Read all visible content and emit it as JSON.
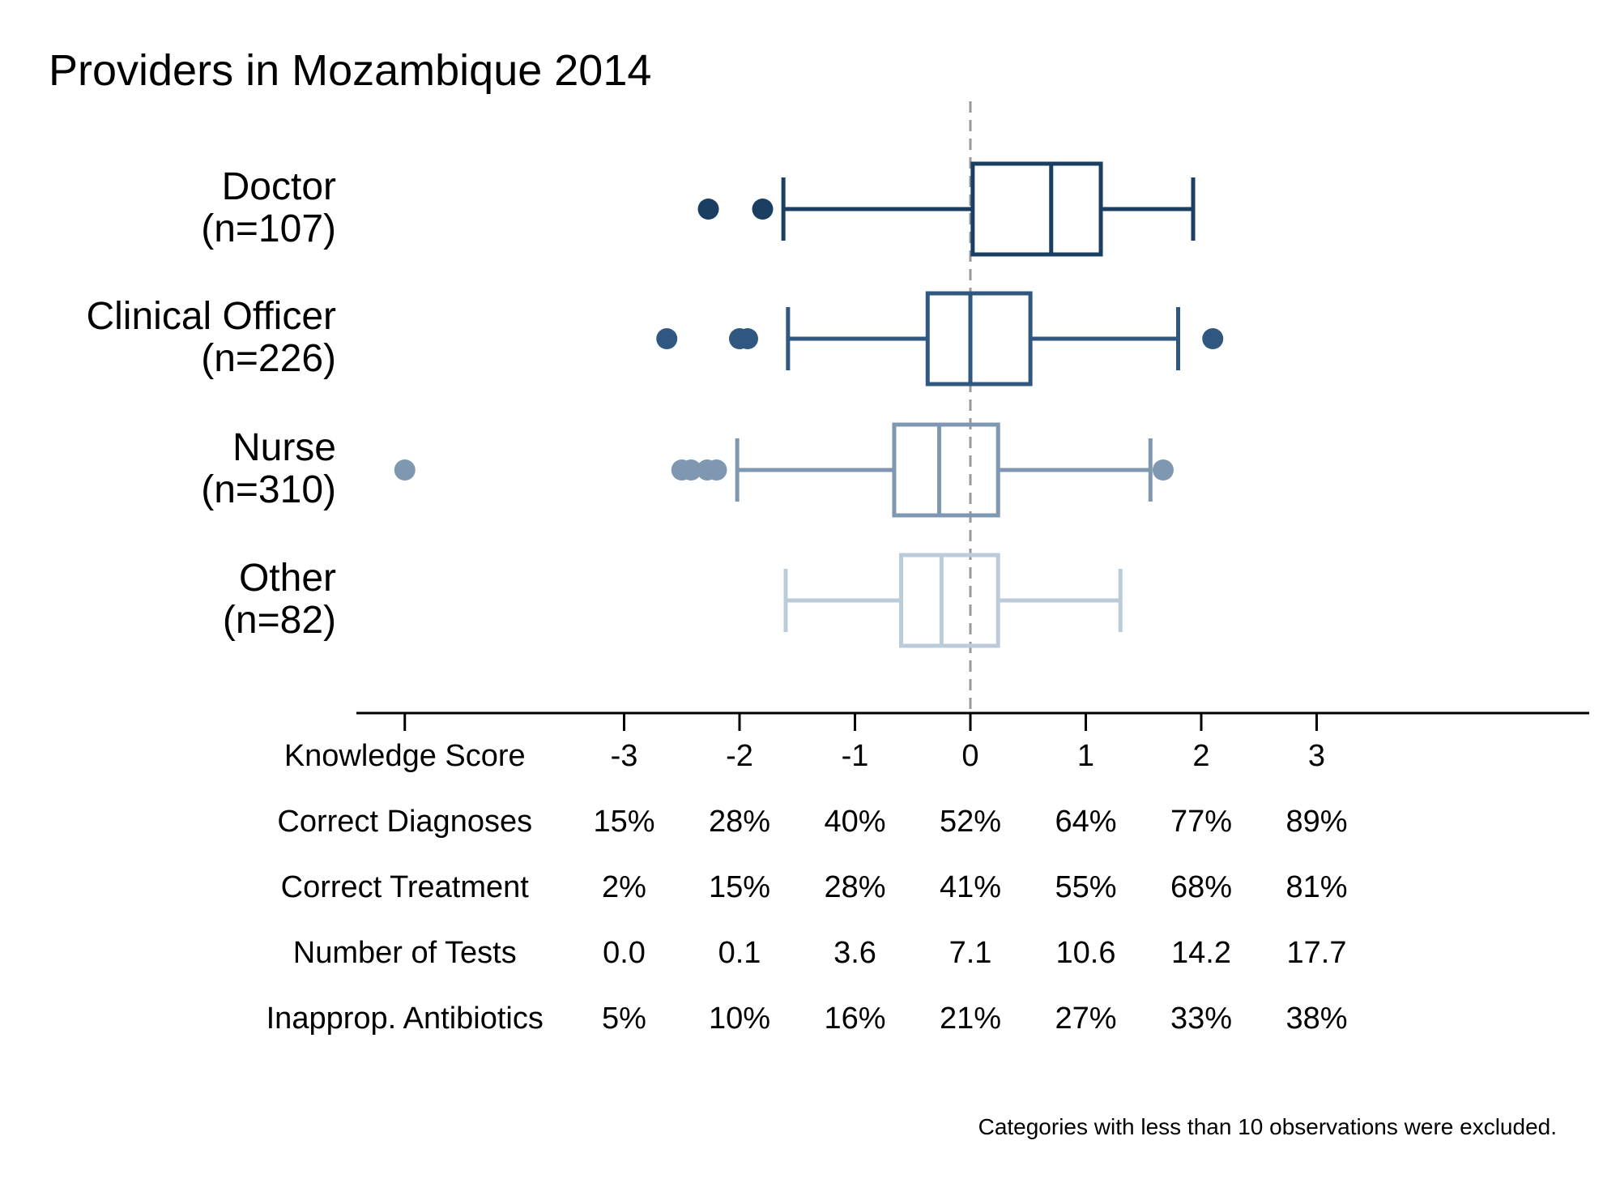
{
  "chart_data": {
    "type": "boxplot",
    "title": "Providers in Mozambique 2014",
    "note": "Categories with less than 10 observations were excluded.",
    "xlim": [
      -3.5,
      5.3
    ],
    "reference_line": 0,
    "colors": [
      "#1b3f63",
      "#2f577f",
      "#7f97b0",
      "#bccbda"
    ],
    "categories": [
      {
        "name": "Doctor",
        "n_label": "(n=107)",
        "q1": 0.02,
        "median": 0.7,
        "q3": 1.13,
        "whisker_low": -1.62,
        "whisker_high": 1.93,
        "outliers": [
          -2.27,
          -1.8
        ]
      },
      {
        "name": "Clinical Officer",
        "n_label": "(n=226)",
        "q1": -0.37,
        "median": 0.0,
        "q3": 0.52,
        "whisker_low": -1.58,
        "whisker_high": 1.8,
        "outliers": [
          -2.63,
          -2.0,
          -1.93,
          2.1
        ]
      },
      {
        "name": "Nurse",
        "n_label": "(n=310)",
        "q1": -0.66,
        "median": -0.27,
        "q3": 0.24,
        "whisker_low": -2.02,
        "whisker_high": 1.56,
        "outliers": [
          -4.9,
          -2.5,
          -2.42,
          -2.28,
          -2.2,
          1.67
        ]
      },
      {
        "name": "Other",
        "n_label": "(n=82)",
        "q1": -0.6,
        "median": -0.25,
        "q3": 0.24,
        "whisker_low": -1.6,
        "whisker_high": 1.3,
        "outliers": []
      }
    ],
    "table": {
      "ticks": [
        -3,
        -2,
        -1,
        0,
        1,
        2,
        3
      ],
      "rows": [
        {
          "label": "Knowledge Score",
          "values": [
            "-3",
            "-2",
            "-1",
            "0",
            "1",
            "2",
            "3"
          ]
        },
        {
          "label": "Correct Diagnoses",
          "values": [
            "15%",
            "28%",
            "40%",
            "52%",
            "64%",
            "77%",
            "89%"
          ]
        },
        {
          "label": "Correct Treatment",
          "values": [
            "2%",
            "15%",
            "28%",
            "41%",
            "55%",
            "68%",
            "81%"
          ]
        },
        {
          "label": "Number of Tests",
          "values": [
            "0.0",
            "0.1",
            "3.6",
            "7.1",
            "10.6",
            "14.2",
            "17.7"
          ]
        },
        {
          "label": "Inapprop. Antibiotics",
          "values": [
            "5%",
            "10%",
            "16%",
            "21%",
            "27%",
            "33%",
            "38%"
          ]
        }
      ]
    }
  }
}
